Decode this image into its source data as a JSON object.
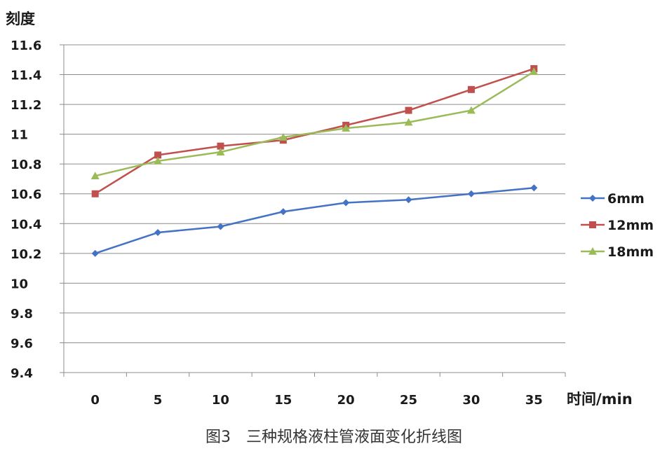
{
  "chart_data": {
    "type": "line",
    "ylabel": "刻度",
    "xlabel": "时间/min",
    "caption": "图3　三种规格液柱管液面变化折线图",
    "categories": [
      "0",
      "5",
      "10",
      "15",
      "20",
      "25",
      "30",
      "35"
    ],
    "y_ticks": [
      "11.6",
      "11.4",
      "11.2",
      "11",
      "10.8",
      "10.6",
      "10.4",
      "10.2",
      "10",
      "9.8",
      "9.6",
      "9.4"
    ],
    "ylim": [
      9.4,
      11.6
    ],
    "grid": true,
    "legend_position": "right",
    "series": [
      {
        "name": "6mm",
        "color": "#4472C4",
        "marker": "diamond",
        "values": [
          10.2,
          10.34,
          10.38,
          10.48,
          10.54,
          10.56,
          10.6,
          10.64
        ]
      },
      {
        "name": "12mm",
        "color": "#C0504D",
        "marker": "square",
        "values": [
          10.6,
          10.86,
          10.92,
          10.96,
          11.06,
          11.16,
          11.3,
          11.44
        ]
      },
      {
        "name": "18mm",
        "color": "#9BBB59",
        "marker": "triangle",
        "values": [
          10.72,
          10.82,
          10.88,
          10.98,
          11.04,
          11.08,
          11.16,
          11.42
        ]
      }
    ]
  }
}
